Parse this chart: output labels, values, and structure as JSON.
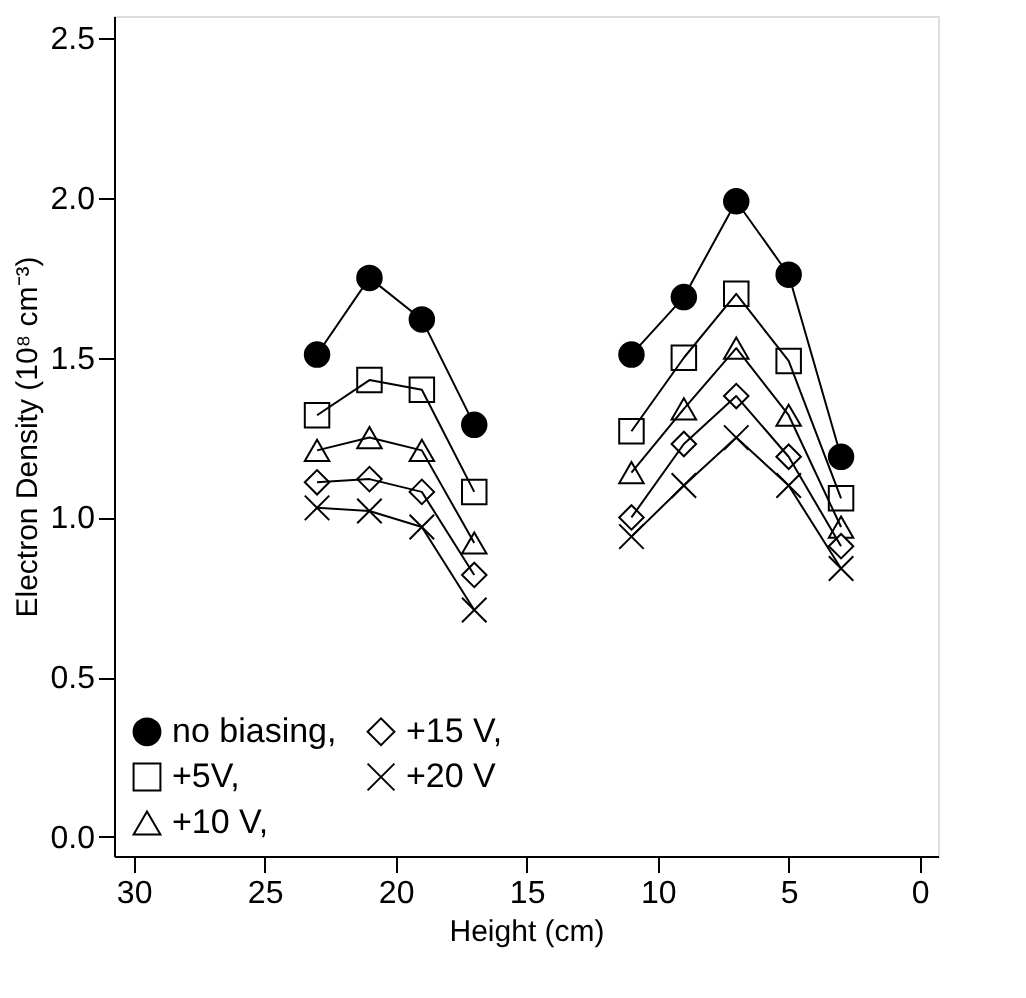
{
  "chart_data": {
    "type": "line",
    "xlabel": "Height (cm)",
    "ylabel": "Electron Density (10⁸ cm⁻³)",
    "x": [
      23,
      21,
      19,
      17,
      14,
      11,
      9,
      7,
      5,
      3
    ],
    "xlim": [
      30.75,
      -0.7
    ],
    "xticks": [
      30,
      25,
      20,
      15,
      10,
      5,
      0
    ],
    "ylim": [
      -0.06,
      2.57
    ],
    "yticks": [
      {
        "value": 0,
        "label": "0.0"
      },
      {
        "value": 0.5,
        "label": "0.5"
      },
      {
        "value": 1,
        "label": "1.0"
      },
      {
        "value": 1.5,
        "label": "1.5"
      },
      {
        "value": 2,
        "label": "2.0"
      },
      {
        "value": 2.5,
        "label": "2.5"
      }
    ],
    "grid": false,
    "legend": "bottom left",
    "line_style": "solid",
    "series": [
      {
        "name": "no biasing,",
        "color": "#000000",
        "marker": "circle",
        "values": [
          1.51,
          1.75,
          1.62,
          1.29,
          null,
          1.51,
          1.69,
          1.99,
          1.76,
          1.19
        ]
      },
      {
        "name": "+5V,",
        "color": "#000000",
        "marker": "square",
        "values": [
          1.32,
          1.43,
          1.4,
          1.08,
          null,
          1.27,
          1.5,
          1.7,
          1.49,
          1.06
        ]
      },
      {
        "name": "+10 V,",
        "color": "#000000",
        "marker": "triangle",
        "values": [
          1.21,
          1.25,
          1.21,
          0.92,
          null,
          1.14,
          1.34,
          1.53,
          1.32,
          0.97
        ]
      },
      {
        "name": "+15 V,",
        "color": "#000000",
        "marker": "diamond",
        "values": [
          1.11,
          1.12,
          1.08,
          0.82,
          null,
          1.0,
          1.23,
          1.38,
          1.19,
          0.91
        ]
      },
      {
        "name": "+20 V",
        "color": "#000000",
        "marker": "cross",
        "values": [
          1.03,
          1.02,
          0.97,
          0.71,
          null,
          0.94,
          1.1,
          1.25,
          1.1,
          0.84
        ]
      }
    ]
  }
}
